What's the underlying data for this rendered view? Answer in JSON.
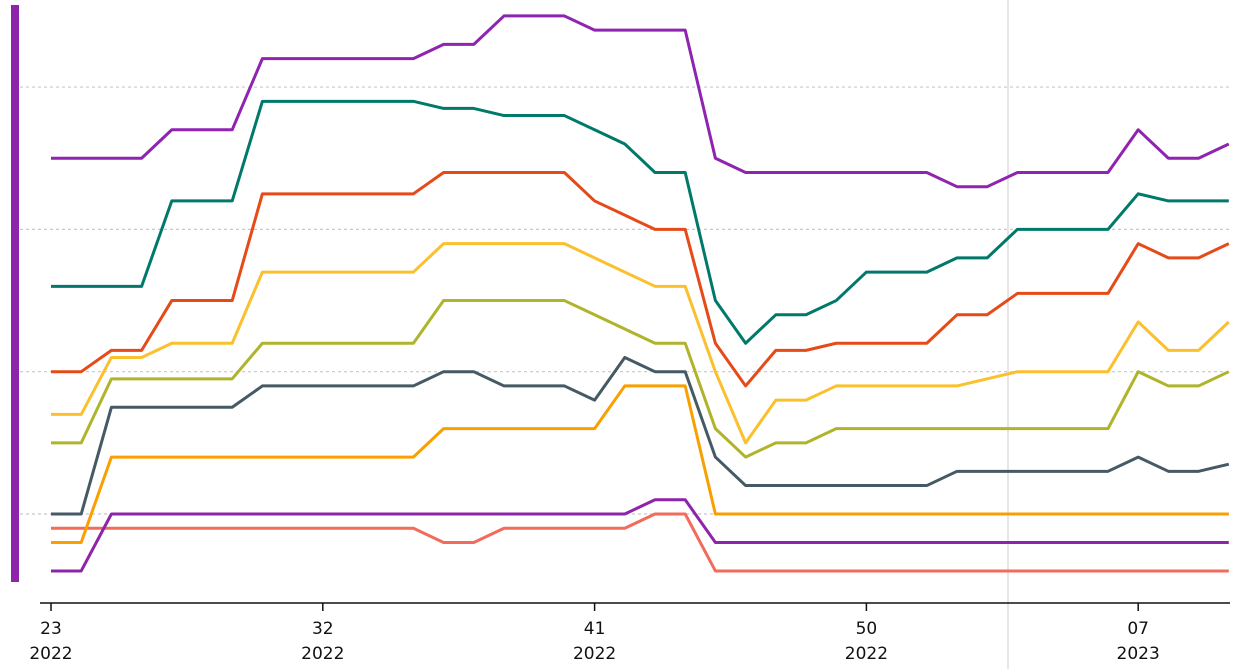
{
  "chart_data": {
    "type": "line",
    "categories": [
      "23\n2022",
      null,
      null,
      null,
      null,
      null,
      null,
      null,
      null,
      "32\n2022",
      null,
      null,
      null,
      null,
      null,
      null,
      null,
      null,
      "41\n2022",
      null,
      null,
      null,
      null,
      null,
      null,
      null,
      null,
      "50\n2022",
      null,
      null,
      null,
      null,
      null,
      null,
      null,
      null,
      "07\n2023",
      null,
      null,
      null
    ],
    "ylim": [
      0.4,
      4.6
    ],
    "yticks": [
      1,
      2,
      3,
      4
    ],
    "grid": true,
    "series": [
      {
        "color": "#f26b5b",
        "values": [
          0.9,
          0.9,
          0.9,
          0.9,
          0.9,
          0.9,
          0.9,
          0.9,
          0.9,
          0.9,
          0.9,
          0.9,
          0.9,
          0.8,
          0.8,
          0.9,
          0.9,
          0.9,
          0.9,
          0.9,
          1.0,
          1.0,
          0.6,
          0.6,
          0.6,
          0.6,
          0.6,
          0.6,
          0.6,
          0.6,
          0.6,
          0.6,
          0.6,
          0.6,
          0.6,
          0.6,
          0.6,
          0.6,
          0.6,
          0.6
        ]
      },
      {
        "color": "#8e24aa",
        "values": [
          0.6,
          0.6,
          1.0,
          1.0,
          1.0,
          1.0,
          1.0,
          1.0,
          1.0,
          1.0,
          1.0,
          1.0,
          1.0,
          1.0,
          1.0,
          1.0,
          1.0,
          1.0,
          1.0,
          1.0,
          1.1,
          1.1,
          0.8,
          0.8,
          0.8,
          0.8,
          0.8,
          0.8,
          0.8,
          0.8,
          0.8,
          0.8,
          0.8,
          0.8,
          0.8,
          0.8,
          0.8,
          0.8,
          0.8,
          0.8
        ]
      },
      {
        "color": "#f9a000",
        "values": [
          0.8,
          0.8,
          1.4,
          1.4,
          1.4,
          1.4,
          1.4,
          1.4,
          1.4,
          1.4,
          1.4,
          1.4,
          1.4,
          1.6,
          1.6,
          1.6,
          1.6,
          1.6,
          1.6,
          1.9,
          1.9,
          1.9,
          1.0,
          1.0,
          1.0,
          1.0,
          1.0,
          1.0,
          1.0,
          1.0,
          1.0,
          1.0,
          1.0,
          1.0,
          1.0,
          1.0,
          1.0,
          1.0,
          1.0,
          1.0
        ]
      },
      {
        "color": "#455a64",
        "values": [
          1.0,
          1.0,
          1.75,
          1.75,
          1.75,
          1.75,
          1.75,
          1.9,
          1.9,
          1.9,
          1.9,
          1.9,
          1.9,
          2.0,
          2.0,
          1.9,
          1.9,
          1.9,
          1.8,
          2.1,
          2.0,
          2.0,
          1.4,
          1.2,
          1.2,
          1.2,
          1.2,
          1.2,
          1.2,
          1.2,
          1.3,
          1.3,
          1.3,
          1.3,
          1.3,
          1.3,
          1.4,
          1.3,
          1.3,
          1.35
        ]
      },
      {
        "color": "#afb42b",
        "values": [
          1.5,
          1.5,
          1.95,
          1.95,
          1.95,
          1.95,
          1.95,
          2.2,
          2.2,
          2.2,
          2.2,
          2.2,
          2.2,
          2.5,
          2.5,
          2.5,
          2.5,
          2.5,
          2.4,
          2.3,
          2.2,
          2.2,
          1.6,
          1.4,
          1.5,
          1.5,
          1.6,
          1.6,
          1.6,
          1.6,
          1.6,
          1.6,
          1.6,
          1.6,
          1.6,
          1.6,
          2.0,
          1.9,
          1.9,
          2.0
        ]
      },
      {
        "color": "#fbc02d",
        "values": [
          1.7,
          1.7,
          2.1,
          2.1,
          2.2,
          2.2,
          2.2,
          2.7,
          2.7,
          2.7,
          2.7,
          2.7,
          2.7,
          2.9,
          2.9,
          2.9,
          2.9,
          2.9,
          2.8,
          2.7,
          2.6,
          2.6,
          2.0,
          1.5,
          1.8,
          1.8,
          1.9,
          1.9,
          1.9,
          1.9,
          1.9,
          1.95,
          2.0,
          2.0,
          2.0,
          2.0,
          2.35,
          2.15,
          2.15,
          2.35
        ]
      },
      {
        "color": "#e64a19",
        "values": [
          2.0,
          2.0,
          2.15,
          2.15,
          2.5,
          2.5,
          2.5,
          3.25,
          3.25,
          3.25,
          3.25,
          3.25,
          3.25,
          3.4,
          3.4,
          3.4,
          3.4,
          3.4,
          3.2,
          3.1,
          3.0,
          3.0,
          2.2,
          1.9,
          2.15,
          2.15,
          2.2,
          2.2,
          2.2,
          2.2,
          2.4,
          2.4,
          2.55,
          2.55,
          2.55,
          2.55,
          2.9,
          2.8,
          2.8,
          2.9
        ]
      },
      {
        "color": "#00796b",
        "values": [
          2.6,
          2.6,
          2.6,
          2.6,
          3.2,
          3.2,
          3.2,
          3.9,
          3.9,
          3.9,
          3.9,
          3.9,
          3.9,
          3.85,
          3.85,
          3.8,
          3.8,
          3.8,
          3.7,
          3.6,
          3.4,
          3.4,
          2.5,
          2.2,
          2.4,
          2.4,
          2.5,
          2.7,
          2.7,
          2.7,
          2.8,
          2.8,
          3.0,
          3.0,
          3.0,
          3.0,
          3.25,
          3.2,
          3.2,
          3.2
        ]
      },
      {
        "color": "#8e24b0",
        "values": [
          3.5,
          3.5,
          3.5,
          3.5,
          3.7,
          3.7,
          3.7,
          4.2,
          4.2,
          4.2,
          4.2,
          4.2,
          4.2,
          4.3,
          4.3,
          4.5,
          4.5,
          4.5,
          4.4,
          4.4,
          4.4,
          4.4,
          3.5,
          3.4,
          3.4,
          3.4,
          3.4,
          3.4,
          3.4,
          3.4,
          3.3,
          3.3,
          3.4,
          3.4,
          3.4,
          3.4,
          3.7,
          3.5,
          3.5,
          3.6
        ]
      }
    ]
  }
}
